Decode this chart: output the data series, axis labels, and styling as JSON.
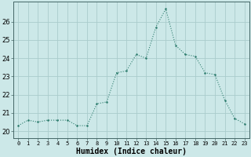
{
  "xlabel": "Humidex (Indice chaleur)",
  "x": [
    0,
    1,
    2,
    3,
    4,
    5,
    6,
    7,
    8,
    9,
    10,
    11,
    12,
    13,
    14,
    15,
    16,
    17,
    18,
    19,
    20,
    21,
    22,
    23
  ],
  "y": [
    20.3,
    20.6,
    20.5,
    20.6,
    20.6,
    20.6,
    20.3,
    20.3,
    21.5,
    21.6,
    23.2,
    23.3,
    24.2,
    24.0,
    25.7,
    26.7,
    24.7,
    24.2,
    24.1,
    23.2,
    23.1,
    21.7,
    20.7,
    20.4
  ],
  "line_color": "#2e7d6e",
  "marker_color": "#2e7d6e",
  "bg_color": "#cce8e8",
  "grid_color": "#aacccc",
  "ylim": [
    19.6,
    27.1
  ],
  "yticks": [
    20,
    21,
    22,
    23,
    24,
    25,
    26
  ],
  "xlim": [
    -0.5,
    23.5
  ],
  "figsize": [
    3.2,
    2.0
  ],
  "dpi": 100,
  "xlabel_fontsize": 7,
  "tick_fontsize": 5,
  "ytick_fontsize": 6
}
